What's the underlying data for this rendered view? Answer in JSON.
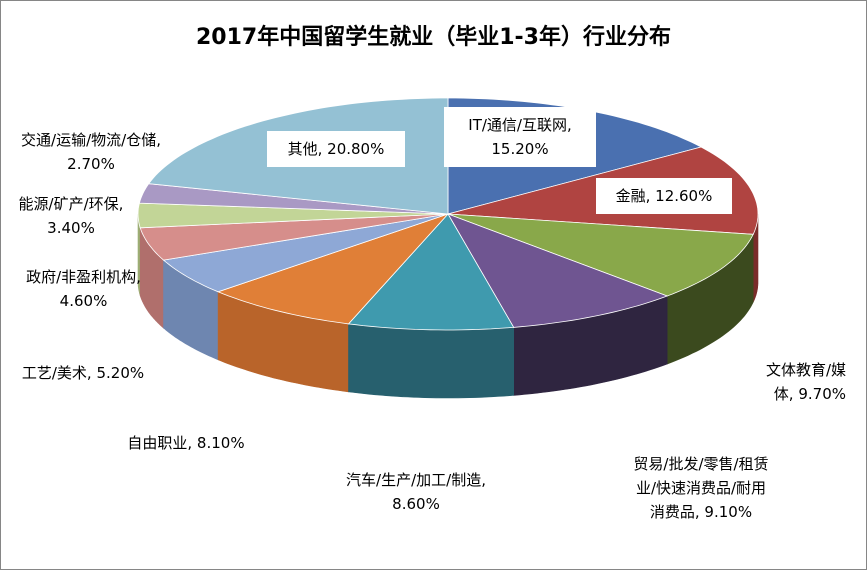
{
  "chart_data": {
    "type": "pie",
    "title": "2017年中国留学生就业（毕业1-3年）行业分布",
    "three_d": true,
    "slices": [
      {
        "label": "IT/通信/互联网",
        "value": 15.2,
        "display": "IT/通信/互联网,\n15.20%",
        "color": "#4A70B0",
        "side": "#2E4A7A"
      },
      {
        "label": "金融",
        "value": 12.6,
        "display": "金融, 12.60%",
        "color": "#B04441",
        "side": "#7A2C2A"
      },
      {
        "label": "文体教育/媒体",
        "value": 9.7,
        "display": "文体教育/媒\n体, 9.70%",
        "color": "#89A84A",
        "side": "#3B4A1E"
      },
      {
        "label": "贸易/批发/零售/租赁业/快速消费品/耐用消费品",
        "value": 9.1,
        "display": "贸易/批发/零售/租赁\n业/快速消费品/耐用\n消费品, 9.10%",
        "color": "#6F5591",
        "side": "#2F2540"
      },
      {
        "label": "汽车/生产/加工/制造",
        "value": 8.6,
        "display": "汽车/生产/加工/制造,\n8.60%",
        "color": "#3F9AAE",
        "side": "#27606E"
      },
      {
        "label": "自由职业",
        "value": 8.1,
        "display": "自由职业, 8.10%",
        "color": "#E07F37",
        "side": "#B9642A"
      },
      {
        "label": "工艺/美术",
        "value": 5.2,
        "display": "工艺/美术, 5.20%",
        "color": "#8EA8D6",
        "side": "#6E86B0"
      },
      {
        "label": "政府/非盈利机构",
        "value": 4.6,
        "display": "政府/非盈利机构,\n4.60%",
        "color": "#D68E8B",
        "side": "#B06F6C"
      },
      {
        "label": "能源/矿产/环保",
        "value": 3.4,
        "display": "能源/矿产/环保,\n3.40%",
        "color": "#C2D597",
        "side": "#9CAE74"
      },
      {
        "label": "交通/运输/物流/仓储",
        "value": 2.7,
        "display": "交通/运输/物流/仓储,\n2.70%",
        "color": "#A999C4",
        "side": "#87789F"
      },
      {
        "label": "其他",
        "value": 20.8,
        "display": "其他, 20.80%",
        "color": "#94C1D4",
        "side": "#6F9AAB"
      }
    ]
  }
}
